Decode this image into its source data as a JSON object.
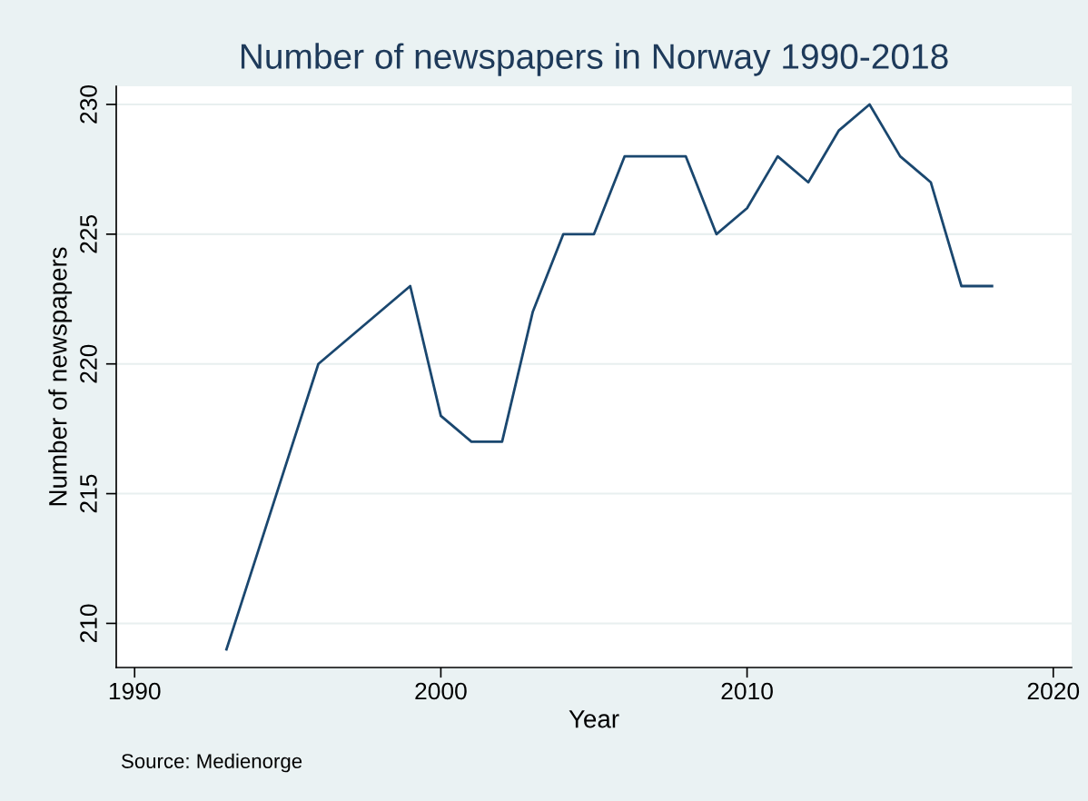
{
  "chart_data": {
    "type": "line",
    "title": "Number of newspapers in Norway 1990-2018",
    "xlabel": "Year",
    "ylabel": "Number of newspapers",
    "annotations": [
      "Source: Medienorge"
    ],
    "x": [
      1993,
      1996,
      1999,
      2000,
      2001,
      2002,
      2003,
      2004,
      2005,
      2006,
      2007,
      2008,
      2009,
      2010,
      2011,
      2012,
      2013,
      2014,
      2015,
      2016,
      2017,
      2018
    ],
    "series": [
      {
        "color": "#1a476f",
        "values": [
          209,
          220,
          223,
          218,
          217,
          217,
          222,
          225,
          225,
          228,
          228,
          228,
          225,
          226,
          228,
          227,
          229,
          230,
          228,
          227,
          223,
          223
        ]
      }
    ],
    "xlim": [
      1989.4,
      2020.6
    ],
    "ylim": [
      208.3,
      230.7
    ],
    "xticks": [
      1990,
      2000,
      2010,
      2020
    ],
    "yticks": [
      210,
      215,
      220,
      225,
      230
    ],
    "grid": "y",
    "legend": false,
    "marker": "none",
    "line_style": "solid"
  }
}
